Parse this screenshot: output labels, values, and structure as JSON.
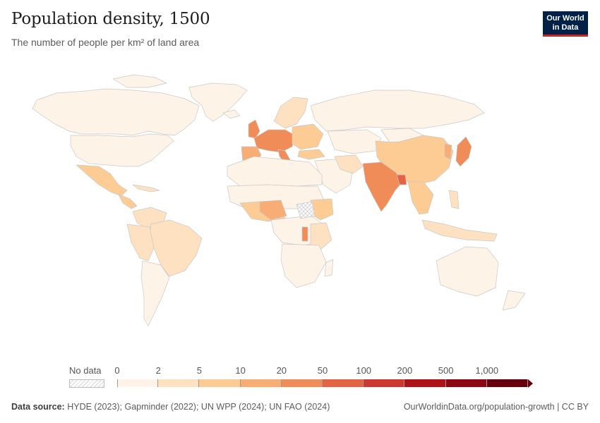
{
  "header": {
    "title": "Population density, 1500",
    "subtitle": "The number of people per km² of land area"
  },
  "logo": {
    "line1": "Our World",
    "line2": "in Data"
  },
  "legend": {
    "no_data_label": "No data",
    "thresholds": [
      "0",
      "2",
      "5",
      "10",
      "20",
      "50",
      "100",
      "200",
      "500",
      "1,000"
    ],
    "colors": [
      "#fef3e7",
      "#fde1c0",
      "#fccc94",
      "#f8ad74",
      "#f08c57",
      "#e26445",
      "#cc3930",
      "#b01219",
      "#8c0711",
      "#67000d"
    ]
  },
  "footer": {
    "source_label": "Data source:",
    "source_text": "HYDE (2023); Gapminder (2022); UN WPP (2024); UN FAO (2024)",
    "credit": "OurWorldinData.org/population-growth | CC BY"
  }
}
